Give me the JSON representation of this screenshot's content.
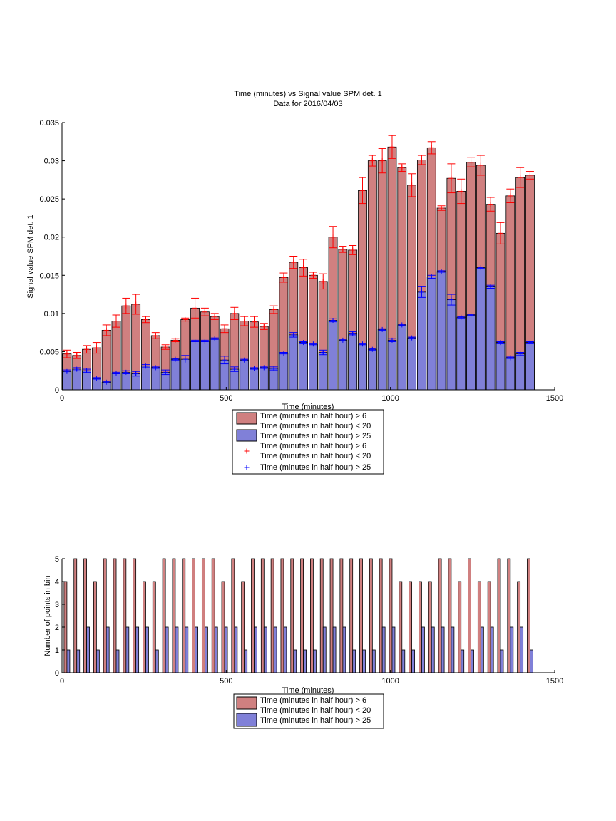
{
  "colors": {
    "red_fill": "#d08080",
    "blue_fill": "#8080d8",
    "red_marker": "#ff0000",
    "blue_marker": "#0000ff",
    "axis": "#000000"
  },
  "chart_data": [
    {
      "type": "bar",
      "title": "Time (minutes) vs Signal value SPM det. 1",
      "subtitle": "Data for 2016/04/03",
      "xlabel": "Time (minutes)",
      "ylabel": "Signal value SPM det. 1",
      "xlim": [
        0,
        1500
      ],
      "ylim": [
        0,
        0.035
      ],
      "xticks": [
        "0",
        "500",
        "1000",
        "1500"
      ],
      "yticks": [
        "0",
        "0.005",
        "0.01",
        "0.015",
        "0.02",
        "0.025",
        "0.03",
        "0.035"
      ],
      "x": [
        15,
        45,
        75,
        105,
        135,
        165,
        195,
        225,
        255,
        285,
        315,
        345,
        375,
        405,
        435,
        465,
        495,
        525,
        555,
        585,
        615,
        645,
        675,
        705,
        735,
        765,
        795,
        825,
        855,
        885,
        915,
        945,
        975,
        1005,
        1035,
        1065,
        1095,
        1125,
        1155,
        1185,
        1215,
        1245,
        1275,
        1305,
        1335,
        1365,
        1395,
        1425
      ],
      "legend": {
        "entries": [
          "Time (minutes in half hour) > 6",
          "Time (minutes in half hour) < 20",
          "Time (minutes in half hour) > 25",
          "Time (minutes in half hour) > 6",
          "Time (minutes in half hour) < 20",
          "Time (minutes in half hour) > 25"
        ],
        "placement": "bottom-center, below plot"
      },
      "series": [
        {
          "values": [
            0.0047,
            0.0045,
            0.0053,
            0.0055,
            0.0078,
            0.009,
            0.011,
            0.0112,
            0.0092,
            0.0071,
            0.0056,
            0.0065,
            0.0092,
            0.0107,
            0.0102,
            0.0096,
            0.008,
            0.01,
            0.009,
            0.0089,
            0.0083,
            0.0105,
            0.0147,
            0.0167,
            0.016,
            0.015,
            0.0142,
            0.02,
            0.0184,
            0.0183,
            0.0261,
            0.03,
            0.03,
            0.0318,
            0.0291,
            0.0268,
            0.0301,
            0.0317,
            0.0238,
            0.0277,
            0.026,
            0.0298,
            0.0294,
            0.0243,
            0.0205,
            0.0254,
            0.0278,
            0.0281
          ],
          "errors": [
            0.0005,
            0.0004,
            0.0005,
            0.0007,
            0.0007,
            0.0008,
            0.001,
            0.0013,
            0.0004,
            0.0004,
            0.0003,
            0.0002,
            0.0002,
            0.0013,
            0.0005,
            0.0004,
            0.0005,
            0.0008,
            0.0006,
            0.0007,
            0.0004,
            0.0005,
            0.0006,
            0.0008,
            0.0011,
            0.0004,
            0.001,
            0.0014,
            0.0004,
            0.0006,
            0.0017,
            0.0007,
            0.0016,
            0.0015,
            0.0005,
            0.0015,
            0.0006,
            0.0008,
            0.0003,
            0.0019,
            0.0016,
            0.0006,
            0.0013,
            0.0009,
            0.0014,
            0.0009,
            0.0013,
            0.0005
          ]
        },
        {
          "values": [
            0.0024,
            0.0027,
            0.0025,
            0.0015,
            0.001,
            0.0022,
            0.0023,
            0.0021,
            0.0031,
            0.0029,
            0.0023,
            0.004,
            0.004,
            0.0064,
            0.0064,
            0.0067,
            0.0039,
            0.0027,
            0.0039,
            0.0028,
            0.0029,
            0.0028,
            0.0048,
            0.0072,
            0.0062,
            0.006,
            0.0049,
            0.0091,
            0.0065,
            0.0074,
            0.006,
            0.0053,
            0.0079,
            0.0065,
            0.0085,
            0.0068,
            0.0128,
            0.0148,
            0.0155,
            0.0118,
            0.0095,
            0.0098,
            0.016,
            0.0135,
            0.0062,
            0.0042,
            0.0047,
            0.0062
          ],
          "errors": [
            0.0002,
            0.0002,
            0.0002,
            0.0001,
            0.0001,
            0.0001,
            0.0002,
            0.0003,
            0.0002,
            0.0001,
            0.0003,
            0.0001,
            0.0005,
            0.0001,
            0.0001,
            0.0001,
            0.0005,
            0.0003,
            0.0001,
            0.0001,
            0.0001,
            0.0002,
            0.0001,
            0.0003,
            0.0001,
            0.0001,
            0.0003,
            0.0002,
            0.0001,
            0.0002,
            0.0001,
            0.0001,
            0.0001,
            0.0002,
            0.0001,
            0.0001,
            0.0007,
            0.0002,
            0.0001,
            0.0007,
            0.0001,
            0.0001,
            0.0001,
            0.0002,
            0.0001,
            0.0001,
            0.0002,
            0.0001
          ]
        }
      ]
    },
    {
      "type": "bar",
      "xlabel": "Time (minutes)",
      "ylabel": "Number of points in bin",
      "xlim": [
        0,
        1500
      ],
      "ylim": [
        0,
        5
      ],
      "xticks": [
        "0",
        "500",
        "1000",
        "1500"
      ],
      "yticks": [
        "0",
        "1",
        "2",
        "3",
        "4",
        "5"
      ],
      "x": [
        15,
        45,
        75,
        105,
        135,
        165,
        195,
        225,
        255,
        285,
        315,
        345,
        375,
        405,
        435,
        465,
        495,
        525,
        555,
        585,
        615,
        645,
        675,
        705,
        735,
        765,
        795,
        825,
        855,
        885,
        915,
        945,
        975,
        1005,
        1035,
        1065,
        1095,
        1125,
        1155,
        1185,
        1215,
        1245,
        1275,
        1305,
        1335,
        1365,
        1395,
        1425
      ],
      "legend": {
        "entries": [
          "Time (minutes in half hour) > 6",
          "Time (minutes in half hour) < 20",
          "Time (minutes in half hour) > 25"
        ],
        "placement": "bottom-center, below plot"
      },
      "series": [
        {
          "values": [
            4,
            5,
            5,
            4,
            5,
            5,
            5,
            5,
            4,
            4,
            5,
            5,
            5,
            5,
            5,
            5,
            4,
            5,
            4,
            5,
            5,
            5,
            5,
            5,
            5,
            5,
            5,
            5,
            5,
            5,
            5,
            5,
            5,
            5,
            4,
            4,
            4,
            4,
            5,
            5,
            4,
            5,
            4,
            4,
            5,
            5,
            4,
            5
          ]
        },
        {
          "values": [
            1,
            1,
            2,
            1,
            2,
            1,
            2,
            2,
            2,
            1,
            2,
            2,
            2,
            2,
            2,
            2,
            2,
            2,
            1,
            2,
            2,
            2,
            2,
            1,
            1,
            1,
            2,
            2,
            2,
            1,
            1,
            1,
            2,
            2,
            1,
            1,
            2,
            2,
            2,
            2,
            1,
            1,
            2,
            2,
            1,
            2,
            2,
            1
          ]
        }
      ]
    }
  ]
}
